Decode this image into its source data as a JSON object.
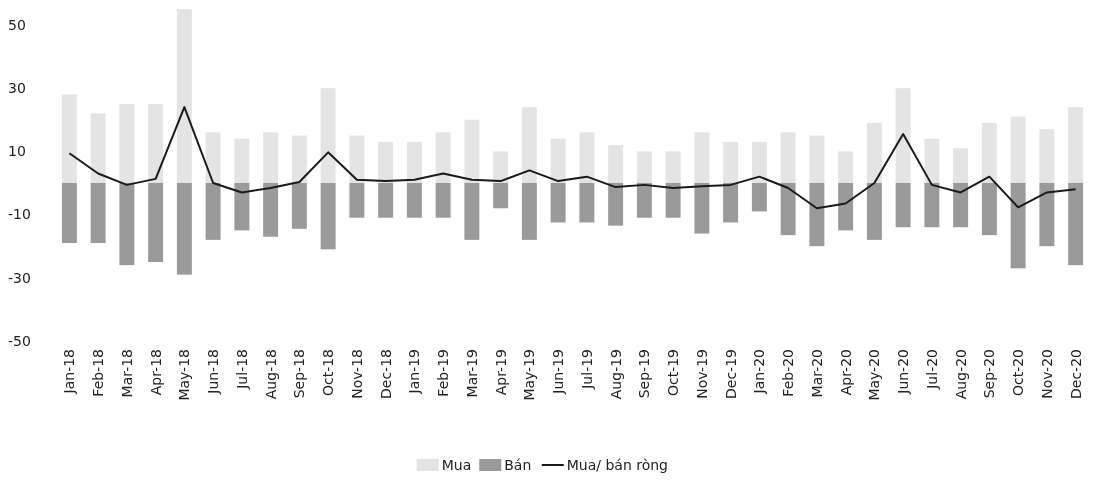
{
  "chart_data": {
    "type": "bar",
    "stacked": true,
    "categories": [
      "Jan-18",
      "Feb-18",
      "Mar-18",
      "Apr-18",
      "May-18",
      "Jun-18",
      "Jul-18",
      "Aug-18",
      "Sep-18",
      "Oct-18",
      "Nov-18",
      "Dec-18",
      "Jan-19",
      "Feb-19",
      "Mar-19",
      "Apr-19",
      "May-19",
      "Jun-19",
      "Jul-19",
      "Aug-19",
      "Sep-19",
      "Oct-19",
      "Nov-19",
      "Dec-19",
      "Jan-20",
      "Feb-20",
      "Mar-20",
      "Apr-20",
      "May-20",
      "Jun-20",
      "Jul-20",
      "Aug-20",
      "Sep-20",
      "Oct-20",
      "Nov-20",
      "Dec-20"
    ],
    "series": [
      {
        "name": "Mua",
        "color": "#e4e4e4",
        "values": [
          28,
          22,
          25,
          25,
          55,
          16,
          14,
          16,
          15,
          30,
          15,
          13,
          13,
          16,
          20,
          10,
          24,
          14,
          16,
          12,
          10,
          10,
          16,
          13,
          13,
          16,
          15,
          10,
          19,
          30,
          14,
          11,
          19,
          21,
          17,
          24
        ]
      },
      {
        "name": "Bán",
        "color": "#9a9a9a",
        "values": [
          -19,
          -19,
          -26,
          -25,
          -29,
          -18,
          -15,
          -17,
          -14.5,
          -21,
          -11,
          -11,
          -11,
          -11,
          -18,
          -8,
          -18,
          -12.5,
          -12.5,
          -13.5,
          -11,
          -11,
          -16,
          -12.5,
          -9,
          -16.5,
          -20,
          -15,
          -18,
          -14,
          -14,
          -14,
          -16.5,
          -27,
          -20,
          -26
        ]
      },
      {
        "name": "Mua/ bán ròng",
        "type": "line",
        "color": "#1a1a1a",
        "values": [
          9.4,
          3,
          -0.6,
          1.3,
          24,
          0,
          -3,
          -1.6,
          0.3,
          9.7,
          1,
          0.6,
          1,
          3,
          1,
          0.6,
          4,
          0.6,
          2,
          -1.3,
          -0.6,
          -1.6,
          -1,
          -0.6,
          2,
          -1.6,
          -8,
          -6.5,
          0,
          15.5,
          -0.6,
          -3,
          2,
          -7.7,
          -3,
          -2
        ]
      }
    ],
    "ylim": [
      -50,
      56
    ],
    "yticks": [
      -50,
      -30,
      -10,
      10,
      30,
      50
    ],
    "grid": false,
    "legend": "bottom",
    "line_style": "solid",
    "marker": "none"
  }
}
